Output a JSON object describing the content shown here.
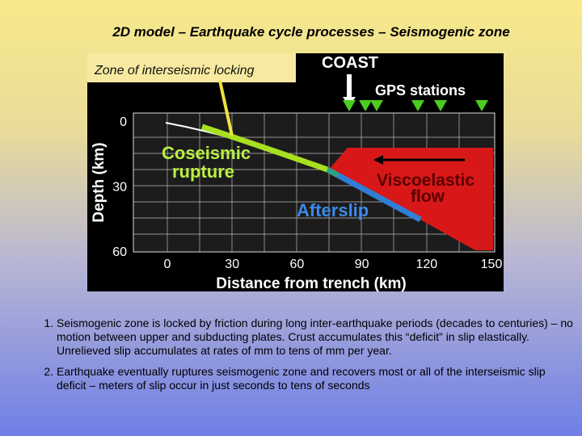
{
  "title": "2D model – Earthquake cycle processes – Seismogenic zone",
  "figure": {
    "locking_label": "Zone of interseismic locking",
    "coast": "COAST",
    "gps": "GPS stations",
    "coseismic": [
      "Coseismic",
      "rupture"
    ],
    "viscoelastic": [
      "Viscoelastic",
      "flow"
    ],
    "afterslip": "Afterslip",
    "y_axis_title": "Depth (km)",
    "x_axis_title": "Distance from trench (km)",
    "y_ticks": [
      0,
      30,
      60
    ],
    "x_ticks": [
      0,
      30,
      60,
      90,
      120,
      150
    ]
  },
  "notes": [
    "Seismogenic zone is locked by friction during long inter-earthquake periods (decades to centuries) – no motion between upper and subducting plates. Crust accumulates this “deficit” in slip elastically. Unrelieved slip accumulates at rates of mm to tens of mm per year.",
    "Earthquake eventually ruptures seismogenic zone and recovers most or all of the interseismic slip deficit – meters of slip occur in just seconds to tens of seconds"
  ]
}
